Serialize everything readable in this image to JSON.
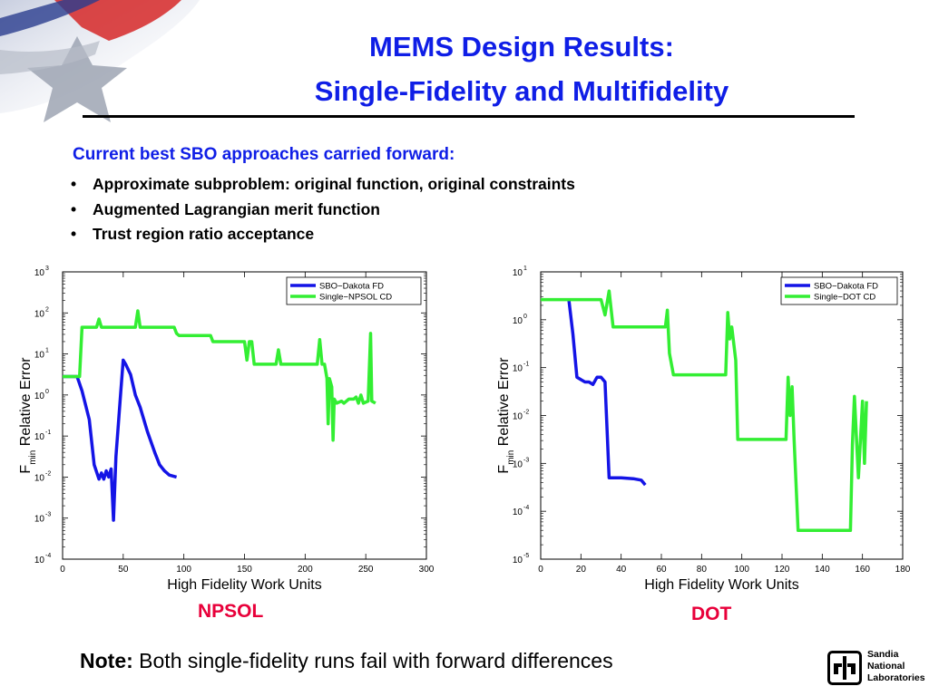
{
  "slide": {
    "title_line1": "MEMS Design Results:",
    "title_line2": "Single-Fidelity and Multifidelity",
    "lead": "Current best SBO approaches carried forward:",
    "bullets": [
      "Approximate subproblem: original function, original constraints",
      "Augmented Lagrangian merit function",
      "Trust region ratio acceptance"
    ],
    "bullet_glyph": "•",
    "note_bold": "Note:",
    "note_text": " Both single-fidelity runs fail with forward differences",
    "chart_captions": [
      "NPSOL",
      "DOT"
    ],
    "logo_lines": [
      "Sandia",
      "National",
      "Laboratories"
    ],
    "colors": {
      "title": "#0f1ee6",
      "caption": "#e8003a",
      "series_blue": "#1414e6",
      "series_green": "#33ee33"
    }
  },
  "chart_data": [
    {
      "type": "line",
      "scale_y": "log",
      "xlabel": "High Fidelity Work Units",
      "ylabel_main": "F",
      "ylabel_sub": "min",
      "ylabel_rest": " Relative Error",
      "xlim": [
        0,
        300
      ],
      "ylim_exp": [
        -4,
        3
      ],
      "xticks": [
        "0",
        "50",
        "100",
        "150",
        "200",
        "250",
        "300"
      ],
      "yticks_exp": [
        "-4",
        "-3",
        "-2",
        "-1",
        "0",
        "1",
        "2",
        "3"
      ],
      "ytick_base": "10",
      "legend": "top-right",
      "grid": false,
      "series": [
        {
          "name": "SBO−Dakota FD",
          "color": "#1414e6",
          "points": [
            [
              0,
              0.45
            ],
            [
              12,
              0.45
            ],
            [
              16,
              0.1
            ],
            [
              22,
              -0.6
            ],
            [
              26,
              -1.7
            ],
            [
              30,
              -2.05
            ],
            [
              32,
              -1.9
            ],
            [
              34,
              -2.05
            ],
            [
              36,
              -1.85
            ],
            [
              38,
              -2.0
            ],
            [
              40,
              -1.8
            ],
            [
              42,
              -3.05
            ],
            [
              44,
              -1.5
            ],
            [
              48,
              0.1
            ],
            [
              50,
              0.85
            ],
            [
              52,
              0.75
            ],
            [
              56,
              0.5
            ],
            [
              60,
              0.0
            ],
            [
              64,
              -0.3
            ],
            [
              70,
              -0.9
            ],
            [
              76,
              -1.4
            ],
            [
              80,
              -1.7
            ],
            [
              84,
              -1.85
            ],
            [
              88,
              -1.95
            ],
            [
              94,
              -2.0
            ]
          ]
        },
        {
          "name": "Single−NPSOL CD",
          "color": "#33ee33",
          "points": [
            [
              0,
              0.45
            ],
            [
              14,
              0.45
            ],
            [
              16,
              1.65
            ],
            [
              28,
              1.65
            ],
            [
              30,
              1.85
            ],
            [
              32,
              1.65
            ],
            [
              60,
              1.65
            ],
            [
              62,
              2.05
            ],
            [
              64,
              1.65
            ],
            [
              92,
              1.65
            ],
            [
              94,
              1.5
            ],
            [
              96,
              1.45
            ],
            [
              122,
              1.45
            ],
            [
              124,
              1.3
            ],
            [
              150,
              1.3
            ],
            [
              152,
              0.85
            ],
            [
              154,
              1.3
            ],
            [
              156,
              1.3
            ],
            [
              158,
              0.75
            ],
            [
              176,
              0.75
            ],
            [
              178,
              1.1
            ],
            [
              180,
              0.75
            ],
            [
              210,
              0.75
            ],
            [
              212,
              1.35
            ],
            [
              214,
              0.75
            ],
            [
              216,
              0.75
            ],
            [
              218,
              0.4
            ],
            [
              219,
              -0.7
            ],
            [
              220,
              0.4
            ],
            [
              222,
              0.2
            ],
            [
              223,
              -1.1
            ],
            [
              224,
              -0.1
            ],
            [
              226,
              -0.2
            ],
            [
              230,
              -0.15
            ],
            [
              232,
              -0.2
            ],
            [
              236,
              -0.1
            ],
            [
              240,
              -0.1
            ],
            [
              242,
              -0.05
            ],
            [
              244,
              -0.2
            ],
            [
              246,
              0.0
            ],
            [
              248,
              -0.2
            ],
            [
              252,
              -0.15
            ],
            [
              254,
              1.5
            ],
            [
              255,
              -0.15
            ],
            [
              258,
              -0.2
            ]
          ]
        }
      ]
    },
    {
      "type": "line",
      "scale_y": "log",
      "xlabel": "High Fidelity Work Units",
      "ylabel_main": "F",
      "ylabel_sub": "min",
      "ylabel_rest": " Relative Error",
      "xlim": [
        0,
        180
      ],
      "ylim_exp": [
        -5,
        1
      ],
      "xticks": [
        "0",
        "20",
        "40",
        "60",
        "80",
        "100",
        "120",
        "140",
        "160",
        "180"
      ],
      "yticks_exp": [
        "-5",
        "-4",
        "-3",
        "-2",
        "-1",
        "0",
        "1"
      ],
      "ytick_base": "10",
      "legend": "top-right",
      "grid": false,
      "series": [
        {
          "name": "SBO−Dakota FD",
          "color": "#1414e6",
          "points": [
            [
              14,
              0.42
            ],
            [
              16,
              -0.3
            ],
            [
              18,
              -1.2
            ],
            [
              20,
              -1.25
            ],
            [
              22,
              -1.3
            ],
            [
              24,
              -1.3
            ],
            [
              26,
              -1.35
            ],
            [
              28,
              -1.2
            ],
            [
              30,
              -1.2
            ],
            [
              32,
              -1.3
            ],
            [
              34,
              -3.3
            ],
            [
              40,
              -3.3
            ],
            [
              46,
              -3.32
            ],
            [
              50,
              -3.35
            ],
            [
              52,
              -3.45
            ]
          ]
        },
        {
          "name": "Single−DOT CD",
          "color": "#33ee33",
          "points": [
            [
              0,
              0.42
            ],
            [
              30,
              0.42
            ],
            [
              32,
              0.1
            ],
            [
              34,
              0.6
            ],
            [
              36,
              -0.15
            ],
            [
              62,
              -0.15
            ],
            [
              63,
              0.2
            ],
            [
              64,
              -0.7
            ],
            [
              66,
              -1.15
            ],
            [
              92,
              -1.15
            ],
            [
              93,
              0.15
            ],
            [
              94,
              -0.4
            ],
            [
              95,
              -0.15
            ],
            [
              97,
              -0.85
            ],
            [
              98,
              -2.5
            ],
            [
              122,
              -2.5
            ],
            [
              123,
              -1.2
            ],
            [
              124,
              -2.0
            ],
            [
              125,
              -1.4
            ],
            [
              126,
              -2.5
            ],
            [
              128,
              -4.4
            ],
            [
              154,
              -4.4
            ],
            [
              155,
              -2.6
            ],
            [
              156,
              -1.6
            ],
            [
              158,
              -3.3
            ],
            [
              160,
              -1.7
            ],
            [
              161,
              -3.0
            ],
            [
              162,
              -1.7
            ]
          ]
        }
      ]
    }
  ]
}
